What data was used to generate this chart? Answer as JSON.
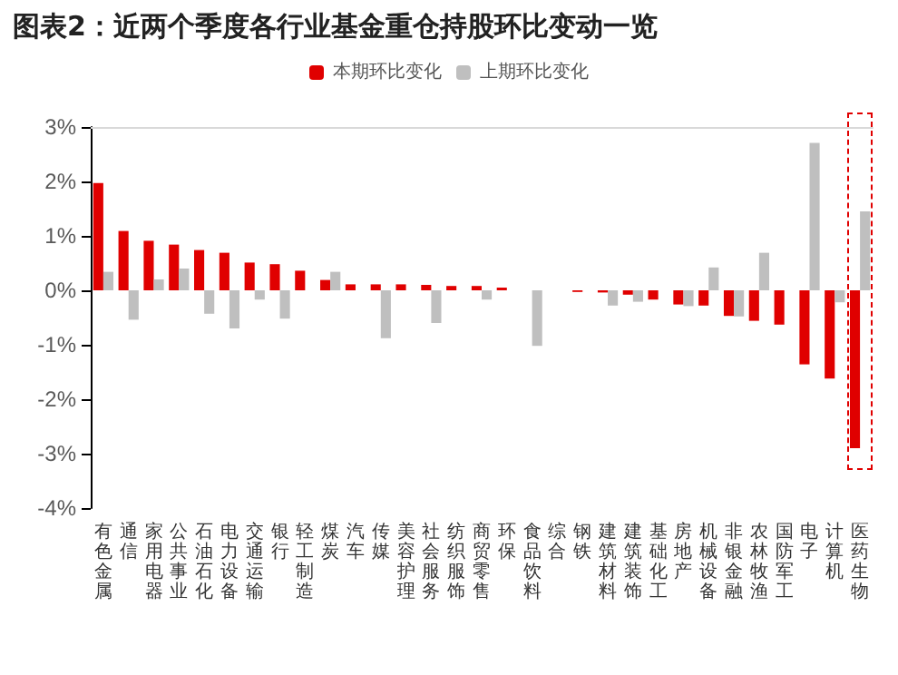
{
  "chart_data": {
    "type": "bar",
    "title": "图表2：近两个季度各行业基金重仓持股环比变动一览",
    "categories": [
      "有色金属",
      "通信",
      "家用电器",
      "公共事业",
      "石油石化",
      "电力设备",
      "交通运输",
      "银行",
      "轻工制造",
      "煤炭",
      "汽车",
      "传媒",
      "美容护理",
      "社会服务",
      "纺织服饰",
      "商贸零售",
      "环保",
      "食品饮料",
      "综合",
      "钢铁",
      "建筑材料",
      "建筑装饰",
      "基础化工",
      "房地产",
      "机械设备",
      "非银金融",
      "农林牧渔",
      "国防军工",
      "电子",
      "计算机",
      "医药生物"
    ],
    "series": [
      {
        "name": "本期环比变化",
        "color": "#e00000",
        "values": [
          1.97,
          1.09,
          0.91,
          0.84,
          0.74,
          0.69,
          0.51,
          0.48,
          0.36,
          0.19,
          0.11,
          0.11,
          0.11,
          0.1,
          0.08,
          0.08,
          0.05,
          0,
          0,
          -0.03,
          -0.04,
          -0.08,
          -0.17,
          -0.26,
          -0.28,
          -0.47,
          -0.56,
          -0.63,
          -1.36,
          -1.62,
          -2.9
        ]
      },
      {
        "name": "上期环比变化",
        "color": "#bfbfbf",
        "values": [
          0.34,
          -0.54,
          0.2,
          0.4,
          -0.43,
          -0.7,
          -0.17,
          -0.52,
          null,
          0.34,
          null,
          -0.88,
          0,
          -0.6,
          null,
          -0.17,
          0,
          -1.02,
          0,
          0,
          -0.28,
          -0.21,
          0,
          -0.29,
          0.42,
          -0.48,
          0.69,
          0,
          2.71,
          -0.22,
          1.45
        ]
      }
    ],
    "ylim": [
      -4,
      3
    ],
    "yticks": [
      {
        "value": -4,
        "label": "-4%"
      },
      {
        "value": -3,
        "label": "-3%"
      },
      {
        "value": -2,
        "label": "-2%"
      },
      {
        "value": -1,
        "label": "-1%"
      },
      {
        "value": 0,
        "label": "0%"
      },
      {
        "value": 1,
        "label": "1%"
      },
      {
        "value": 2,
        "label": "2%"
      },
      {
        "value": 3,
        "label": "3%"
      }
    ],
    "legend": "top",
    "grid": false
  }
}
